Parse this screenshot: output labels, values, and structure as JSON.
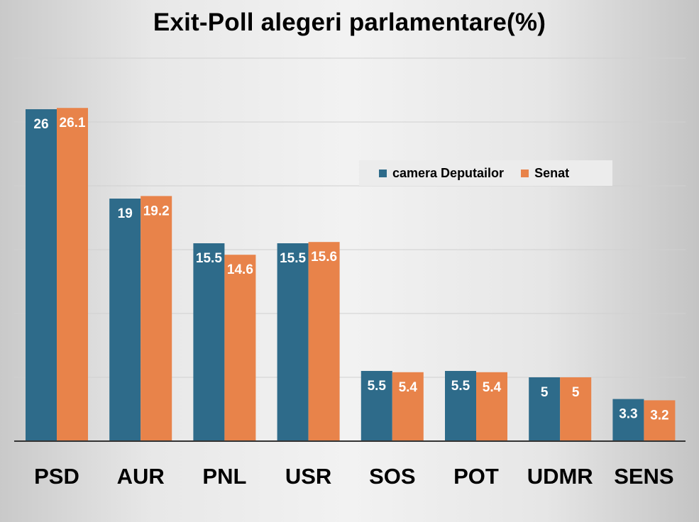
{
  "chart_data": {
    "type": "bar",
    "title": "Exit-Poll alegeri parlamentare(%)",
    "xlabel": "",
    "ylabel": "",
    "categories": [
      "PSD",
      "AUR",
      "PNL",
      "USR",
      "SOS",
      "POT",
      "UDMR",
      "SENS"
    ],
    "series": [
      {
        "name": "camera Deputailor",
        "color": "#2e6b8a",
        "values": [
          26,
          19,
          15.5,
          15.5,
          5.5,
          5.5,
          5,
          3.3
        ],
        "labels": [
          "26",
          "19",
          "15.5",
          "15.5",
          "5.5",
          "5.5",
          "5",
          "3.3"
        ]
      },
      {
        "name": "Senat",
        "color": "#e8834a",
        "values": [
          26.1,
          19.2,
          14.6,
          15.6,
          5.4,
          5.4,
          5,
          3.2
        ],
        "labels": [
          "26.1",
          "19.2",
          "14.6",
          "15.6",
          "5.4",
          "5.4",
          "5",
          "3.2"
        ]
      }
    ],
    "ylim": [
      0,
      30
    ],
    "grid": true,
    "legend_position": "upper-right-inside",
    "data_labels": true
  }
}
